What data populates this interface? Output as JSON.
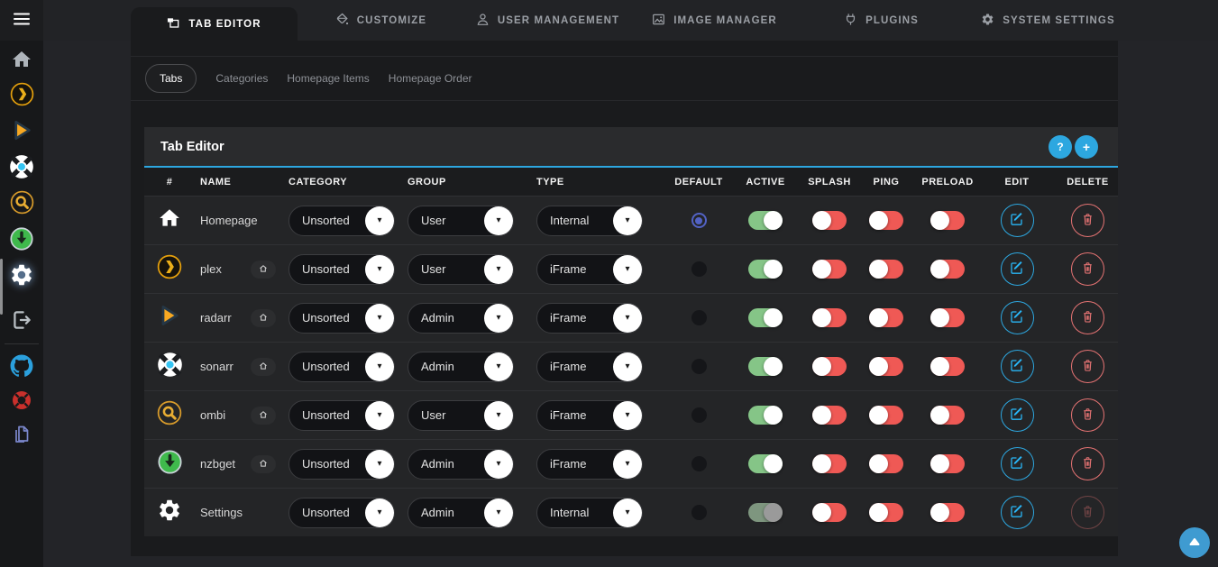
{
  "colors": {
    "accent_blue": "#2da7e0",
    "edit_blue": "#29b6f6",
    "toggle_on_green": "#81c784",
    "toggle_off_red": "#ef5350",
    "radio_selected_indigo": "#5262c4",
    "delete_red": "#e57373",
    "plex_gold": "#e5a00d",
    "nzbget_green": "#3fb94c"
  },
  "sidebar": {
    "icons": [
      {
        "name": "menu"
      },
      {
        "name": "home"
      },
      {
        "name": "plex"
      },
      {
        "name": "radarr"
      },
      {
        "name": "sonarr"
      },
      {
        "name": "ombi"
      },
      {
        "name": "nzbget"
      },
      {
        "name": "settings",
        "active": true
      },
      {
        "name": "logout"
      },
      {
        "name": "github"
      },
      {
        "name": "support"
      },
      {
        "name": "documents"
      }
    ]
  },
  "topnav": {
    "tabs": [
      {
        "label": "TAB EDITOR",
        "icon": "tab-editor",
        "active": true
      },
      {
        "label": "CUSTOMIZE",
        "icon": "customize",
        "active": false
      },
      {
        "label": "USER MANAGEMENT",
        "icon": "user-management",
        "active": false
      },
      {
        "label": "IMAGE MANAGER",
        "icon": "image-manager",
        "active": false
      },
      {
        "label": "PLUGINS",
        "icon": "plugins",
        "active": false
      },
      {
        "label": "SYSTEM SETTINGS",
        "icon": "system-settings",
        "active": false
      }
    ]
  },
  "subtabs": {
    "items": [
      {
        "label": "Tabs",
        "active": true
      },
      {
        "label": "Categories",
        "active": false
      },
      {
        "label": "Homepage Items",
        "active": false
      },
      {
        "label": "Homepage Order",
        "active": false
      }
    ]
  },
  "panel": {
    "title": "Tab Editor",
    "help_label": "?",
    "add_label": "+"
  },
  "table": {
    "columns": [
      "#",
      "NAME",
      "CATEGORY",
      "GROUP",
      "TYPE",
      "DEFAULT",
      "ACTIVE",
      "SPLASH",
      "PING",
      "PRELOAD",
      "EDIT",
      "DELETE"
    ],
    "rows": [
      {
        "icon": "home",
        "name": "Homepage",
        "home_badge": false,
        "category": "Unsorted",
        "group": "User",
        "type": "Internal",
        "default": true,
        "active": true,
        "active_disabled": false,
        "splash": false,
        "ping": false,
        "preload": false,
        "delete_enabled": true
      },
      {
        "icon": "plex",
        "name": "plex",
        "home_badge": true,
        "category": "Unsorted",
        "group": "User",
        "type": "iFrame",
        "default": false,
        "active": true,
        "active_disabled": false,
        "splash": false,
        "ping": false,
        "preload": false,
        "delete_enabled": true
      },
      {
        "icon": "radarr",
        "name": "radarr",
        "home_badge": true,
        "category": "Unsorted",
        "group": "Admin",
        "type": "iFrame",
        "default": false,
        "active": true,
        "active_disabled": false,
        "splash": false,
        "ping": false,
        "preload": false,
        "delete_enabled": true
      },
      {
        "icon": "sonarr",
        "name": "sonarr",
        "home_badge": true,
        "category": "Unsorted",
        "group": "Admin",
        "type": "iFrame",
        "default": false,
        "active": true,
        "active_disabled": false,
        "splash": false,
        "ping": false,
        "preload": false,
        "delete_enabled": true
      },
      {
        "icon": "ombi",
        "name": "ombi",
        "home_badge": true,
        "category": "Unsorted",
        "group": "User",
        "type": "iFrame",
        "default": false,
        "active": true,
        "active_disabled": false,
        "splash": false,
        "ping": false,
        "preload": false,
        "delete_enabled": true
      },
      {
        "icon": "nzbget",
        "name": "nzbget",
        "home_badge": true,
        "category": "Unsorted",
        "group": "Admin",
        "type": "iFrame",
        "default": false,
        "active": true,
        "active_disabled": false,
        "splash": false,
        "ping": false,
        "preload": false,
        "delete_enabled": true
      },
      {
        "icon": "settings",
        "name": "Settings",
        "home_badge": false,
        "category": "Unsorted",
        "group": "Admin",
        "type": "Internal",
        "default": false,
        "active": true,
        "active_disabled": true,
        "splash": false,
        "ping": false,
        "preload": false,
        "delete_enabled": false
      }
    ]
  },
  "scroll_top": {
    "icon": "chevron-up"
  }
}
